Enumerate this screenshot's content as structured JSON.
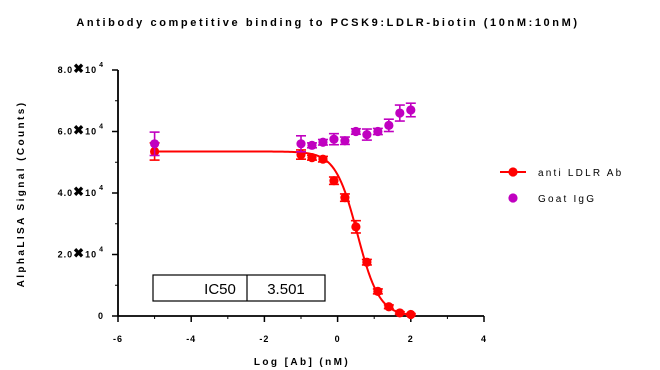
{
  "chart_data": {
    "type": "scatter",
    "title": "Antibody competitive binding to PCSK9:LDLR-biotin (10nM:10nM)",
    "xlabel": "Log [Ab] (nM)",
    "ylabel": "AlphaLISA Signal (Counts)",
    "xlim": [
      -6,
      4
    ],
    "ylim": [
      0,
      80000
    ],
    "x_ticks": [
      {
        "value": -6,
        "label": "-6"
      },
      {
        "value": -4,
        "label": "-4"
      },
      {
        "value": -2,
        "label": "-2"
      },
      {
        "value": 0,
        "label": "0"
      },
      {
        "value": 2,
        "label": "2"
      },
      {
        "value": 4,
        "label": "4"
      }
    ],
    "y_ticks": [
      {
        "value": 0,
        "label": "0"
      },
      {
        "value": 20000,
        "label": "2.0✖10⁴"
      },
      {
        "value": 40000,
        "label": "4.0✖10⁴"
      },
      {
        "value": 60000,
        "label": "6.0✖10⁴"
      },
      {
        "value": 80000,
        "label": "8.0✖10⁴"
      }
    ],
    "series": [
      {
        "name": "anti LDLR Ab",
        "color": "#ff0000",
        "marker": "circle",
        "fit": {
          "type": "sigmoid",
          "top": 53500,
          "bottom": 0,
          "logIC50": 0.54,
          "hill": -1.45
        },
        "points": [
          {
            "x": -5.0,
            "y": 53500,
            "err": 2800
          },
          {
            "x": -1.0,
            "y": 52500,
            "err": 1500
          },
          {
            "x": -0.7,
            "y": 51500,
            "err": 800
          },
          {
            "x": -0.4,
            "y": 51000,
            "err": 900
          },
          {
            "x": -0.1,
            "y": 44000,
            "err": 1200
          },
          {
            "x": 0.2,
            "y": 38500,
            "err": 1200
          },
          {
            "x": 0.5,
            "y": 29000,
            "err": 2000
          },
          {
            "x": 0.8,
            "y": 17500,
            "err": 900
          },
          {
            "x": 1.1,
            "y": 8000,
            "err": 800
          },
          {
            "x": 1.4,
            "y": 3000,
            "err": 600
          },
          {
            "x": 1.7,
            "y": 1000,
            "err": 400
          },
          {
            "x": 2.0,
            "y": 500,
            "err": 300
          }
        ]
      },
      {
        "name": "Goat IgG",
        "color": "#c000c0",
        "marker": "circle",
        "points": [
          {
            "x": -5.0,
            "y": 56000,
            "err": 3800
          },
          {
            "x": -1.0,
            "y": 56000,
            "err": 2600
          },
          {
            "x": -0.7,
            "y": 55500,
            "err": 800
          },
          {
            "x": -0.4,
            "y": 56500,
            "err": 900
          },
          {
            "x": -0.1,
            "y": 57500,
            "err": 1800
          },
          {
            "x": 0.2,
            "y": 57000,
            "err": 1200
          },
          {
            "x": 0.5,
            "y": 60000,
            "err": 900
          },
          {
            "x": 0.8,
            "y": 59000,
            "err": 1800
          },
          {
            "x": 1.1,
            "y": 60000,
            "err": 1000
          },
          {
            "x": 1.4,
            "y": 62000,
            "err": 2000
          },
          {
            "x": 1.7,
            "y": 66000,
            "err": 2600
          },
          {
            "x": 2.0,
            "y": 67000,
            "err": 2200
          }
        ]
      }
    ],
    "legend": {
      "placement": "right"
    },
    "annotation_table": {
      "label": "IC50",
      "value": "3.501"
    }
  }
}
